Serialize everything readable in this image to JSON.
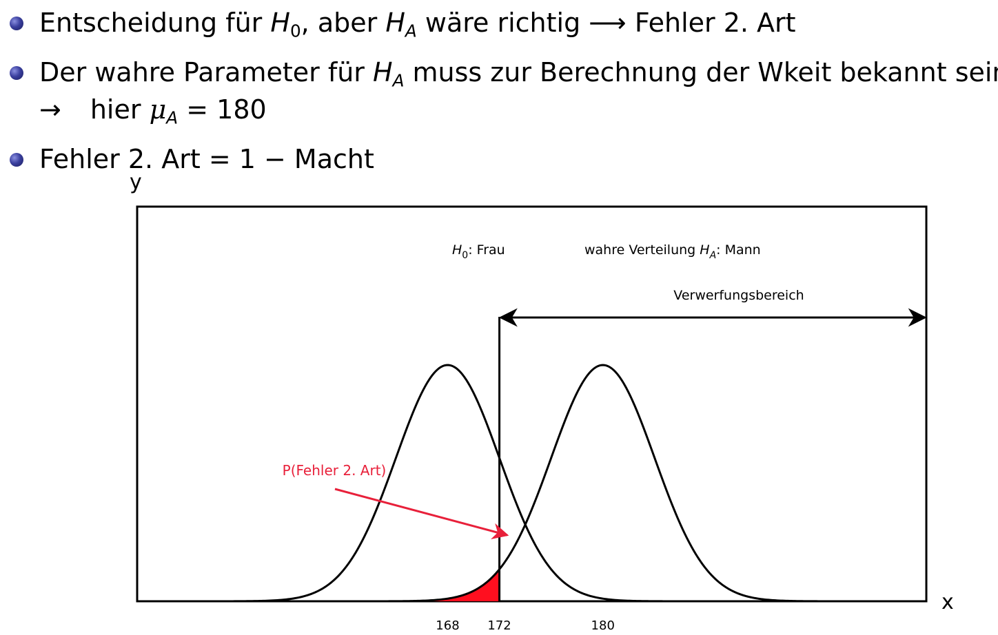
{
  "bullets": {
    "b1": {
      "pre": "Entscheidung für ",
      "h0": "H",
      "h0_sub": "0",
      "mid": ", aber ",
      "ha": "H",
      "ha_sub": "A",
      "post": " wäre richtig ⟶ Fehler 2. Art"
    },
    "b2": {
      "pre": "Der wahre Parameter für ",
      "ha": "H",
      "ha_sub": "A",
      "post": " muss zur Berechnung der Wkeit bekannt sein",
      "line2_arrow": "→",
      "line2_text": "hier ",
      "mu": "μ",
      "mu_sub": "A",
      "eq": " = 180"
    },
    "b3": {
      "text": "Fehler 2. Art = 1 − Macht"
    }
  },
  "chart_data": {
    "type": "area",
    "xlabel": "x",
    "ylabel": "y",
    "ticks": [
      "168",
      "172",
      "180"
    ],
    "tick_values": [
      168,
      172,
      180
    ],
    "series": [
      {
        "name": "H0: Frau",
        "mean": 168,
        "sd": 4
      },
      {
        "name": "wahre Verteilung HA: Mann",
        "mean": 180,
        "sd": 4
      }
    ],
    "critical_value": 172,
    "shaded_region": {
      "series": "HA",
      "from": 148,
      "to": 172,
      "label": "P(Fehler 2. Art)"
    },
    "rejection_region_label": "Verwerfungsbereich",
    "xlim": [
      144,
      205
    ],
    "colors": {
      "curve": "#000000",
      "shade": "#ff0f1f",
      "annotation": "#e8203a"
    }
  },
  "labels": {
    "h0_label": "H",
    "h0_label_sub": "0",
    "h0_label_rest": ": Frau",
    "ha_label_pre": "wahre Verteilung ",
    "ha_label": "H",
    "ha_label_sub": "A",
    "ha_label_rest": ": Mann",
    "reject": "Verwerfungsbereich",
    "error": "P(Fehler 2. Art)",
    "x": "x",
    "y": "y",
    "tick_168": "168",
    "tick_172": "172",
    "tick_180": "180"
  }
}
